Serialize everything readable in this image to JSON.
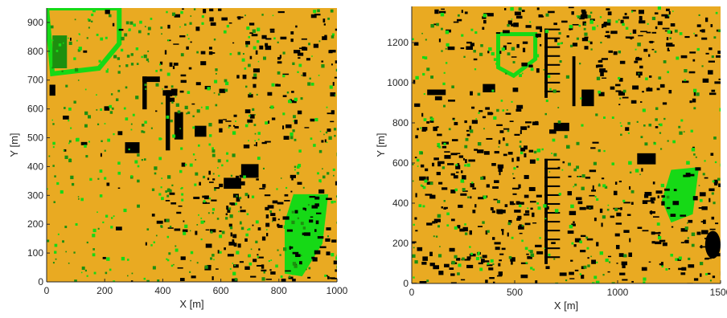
{
  "colors": {
    "ground": "#E9AA22",
    "building": "#000000",
    "tree_dark": "#1D8F0F",
    "tree_light": "#16D916",
    "axis": "#262626"
  },
  "chart_data": [
    {
      "type": "heatmap",
      "title": "",
      "xlabel": "X [m]",
      "ylabel": "Y [m]",
      "xlim": [
        0,
        1000
      ],
      "ylim": [
        0,
        950
      ],
      "xticks": [
        0,
        200,
        400,
        600,
        800,
        1000
      ],
      "yticks": [
        0,
        100,
        200,
        300,
        400,
        500,
        600,
        700,
        800,
        900
      ],
      "classes": [
        "ground",
        "building",
        "vegetation"
      ],
      "grid": false
    },
    {
      "type": "heatmap",
      "title": "",
      "xlabel": "X [m]",
      "ylabel": "Y [m]",
      "xlim": [
        0,
        1500
      ],
      "ylim": [
        0,
        1380
      ],
      "xticks": [
        0,
        500,
        1000,
        1500
      ],
      "yticks": [
        0,
        200,
        400,
        600,
        800,
        1000,
        1200
      ],
      "classes": [
        "ground",
        "building",
        "vegetation"
      ],
      "grid": false
    }
  ]
}
